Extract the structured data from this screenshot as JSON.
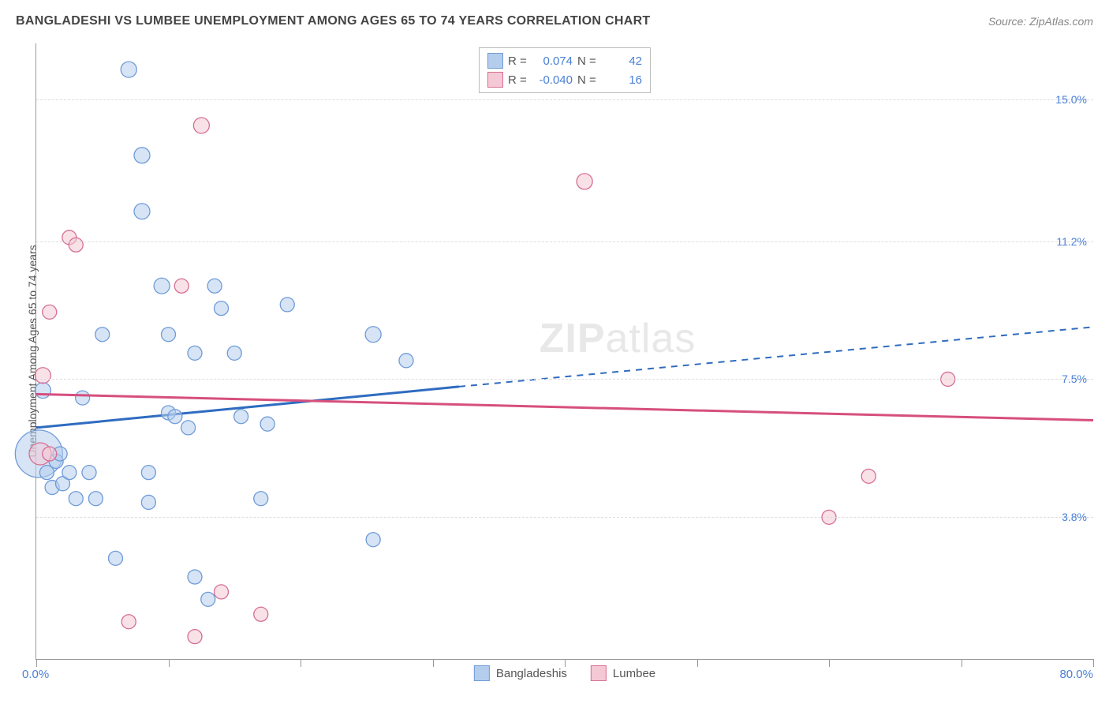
{
  "title": "BANGLADESHI VS LUMBEE UNEMPLOYMENT AMONG AGES 65 TO 74 YEARS CORRELATION CHART",
  "source": "Source: ZipAtlas.com",
  "watermark_a": "ZIP",
  "watermark_b": "atlas",
  "y_axis_label": "Unemployment Among Ages 65 to 74 years",
  "chart": {
    "type": "scatter-with-regression",
    "xlim": [
      0,
      80
    ],
    "ylim": [
      0,
      16.5
    ],
    "x_axis_min_label": "0.0%",
    "x_axis_max_label": "80.0%",
    "x_ticks": [
      0,
      10,
      20,
      30,
      40,
      50,
      60,
      70,
      80
    ],
    "y_gridlines": [
      {
        "value": 3.8,
        "label": "3.8%"
      },
      {
        "value": 7.5,
        "label": "7.5%"
      },
      {
        "value": 11.2,
        "label": "11.2%"
      },
      {
        "value": 15.0,
        "label": "15.0%"
      }
    ],
    "background_color": "#ffffff",
    "grid_color": "#dddddd",
    "series": [
      {
        "name": "Bangladeshis",
        "fill_color": "#b5cdec",
        "stroke_color": "#6f9bd8",
        "swatch_fill": "#b5cdec",
        "swatch_stroke": "#6f9bd8",
        "R": "0.074",
        "N": "42",
        "regression": {
          "solid": {
            "x1": 0,
            "y1": 6.2,
            "x2": 32,
            "y2": 7.3
          },
          "dashed": {
            "x1": 32,
            "y1": 7.3,
            "x2": 80,
            "y2": 8.9
          },
          "color": "#2f6cc0",
          "width": 3
        },
        "points": [
          {
            "x": 0.2,
            "y": 5.5,
            "r": 30
          },
          {
            "x": 0.5,
            "y": 7.2,
            "r": 10
          },
          {
            "x": 1.5,
            "y": 5.3,
            "r": 9
          },
          {
            "x": 0.8,
            "y": 5.0,
            "r": 9
          },
          {
            "x": 1.2,
            "y": 4.6,
            "r": 9
          },
          {
            "x": 2.0,
            "y": 4.7,
            "r": 9
          },
          {
            "x": 2.5,
            "y": 5.0,
            "r": 9
          },
          {
            "x": 1.8,
            "y": 5.5,
            "r": 9
          },
          {
            "x": 3.0,
            "y": 4.3,
            "r": 9
          },
          {
            "x": 4.0,
            "y": 5.0,
            "r": 9
          },
          {
            "x": 4.5,
            "y": 4.3,
            "r": 9
          },
          {
            "x": 3.5,
            "y": 7.0,
            "r": 9
          },
          {
            "x": 5.0,
            "y": 8.7,
            "r": 9
          },
          {
            "x": 6.0,
            "y": 2.7,
            "r": 9
          },
          {
            "x": 7.0,
            "y": 15.8,
            "r": 10
          },
          {
            "x": 8.0,
            "y": 13.5,
            "r": 10
          },
          {
            "x": 8.0,
            "y": 12.0,
            "r": 10
          },
          {
            "x": 8.5,
            "y": 5.0,
            "r": 9
          },
          {
            "x": 8.5,
            "y": 4.2,
            "r": 9
          },
          {
            "x": 9.5,
            "y": 10.0,
            "r": 10
          },
          {
            "x": 10.0,
            "y": 8.7,
            "r": 9
          },
          {
            "x": 10.0,
            "y": 6.6,
            "r": 9
          },
          {
            "x": 10.5,
            "y": 6.5,
            "r": 9
          },
          {
            "x": 11.5,
            "y": 6.2,
            "r": 9
          },
          {
            "x": 12.0,
            "y": 8.2,
            "r": 9
          },
          {
            "x": 12.0,
            "y": 2.2,
            "r": 9
          },
          {
            "x": 13.0,
            "y": 1.6,
            "r": 9
          },
          {
            "x": 13.5,
            "y": 10.0,
            "r": 9
          },
          {
            "x": 14.0,
            "y": 9.4,
            "r": 9
          },
          {
            "x": 15.0,
            "y": 8.2,
            "r": 9
          },
          {
            "x": 15.5,
            "y": 6.5,
            "r": 9
          },
          {
            "x": 17.0,
            "y": 4.3,
            "r": 9
          },
          {
            "x": 17.5,
            "y": 6.3,
            "r": 9
          },
          {
            "x": 19.0,
            "y": 9.5,
            "r": 9
          },
          {
            "x": 25.5,
            "y": 8.7,
            "r": 10
          },
          {
            "x": 25.5,
            "y": 3.2,
            "r": 9
          },
          {
            "x": 28.0,
            "y": 8.0,
            "r": 9
          }
        ]
      },
      {
        "name": "Lumbee",
        "fill_color": "#f4c8d5",
        "stroke_color": "#d66f94",
        "swatch_fill": "#f4c8d5",
        "swatch_stroke": "#d66f94",
        "R": "-0.040",
        "N": "16",
        "regression": {
          "solid": {
            "x1": 0,
            "y1": 7.1,
            "x2": 80,
            "y2": 6.4
          },
          "color": "#d64f7d",
          "width": 3
        },
        "points": [
          {
            "x": 0.3,
            "y": 5.5,
            "r": 14
          },
          {
            "x": 0.5,
            "y": 7.6,
            "r": 10
          },
          {
            "x": 1.0,
            "y": 5.5,
            "r": 9
          },
          {
            "x": 1.0,
            "y": 9.3,
            "r": 9
          },
          {
            "x": 2.5,
            "y": 11.3,
            "r": 9
          },
          {
            "x": 3.0,
            "y": 11.1,
            "r": 9
          },
          {
            "x": 7.0,
            "y": 1.0,
            "r": 9
          },
          {
            "x": 11.0,
            "y": 10.0,
            "r": 9
          },
          {
            "x": 12.0,
            "y": 0.6,
            "r": 9
          },
          {
            "x": 12.5,
            "y": 14.3,
            "r": 10
          },
          {
            "x": 14.0,
            "y": 1.8,
            "r": 9
          },
          {
            "x": 17.0,
            "y": 1.2,
            "r": 9
          },
          {
            "x": 41.5,
            "y": 12.8,
            "r": 10
          },
          {
            "x": 60.0,
            "y": 3.8,
            "r": 9
          },
          {
            "x": 63.0,
            "y": 4.9,
            "r": 9
          },
          {
            "x": 69.0,
            "y": 7.5,
            "r": 9
          }
        ]
      }
    ]
  },
  "legend_top": {
    "r_label": "R =",
    "n_label": "N ="
  }
}
